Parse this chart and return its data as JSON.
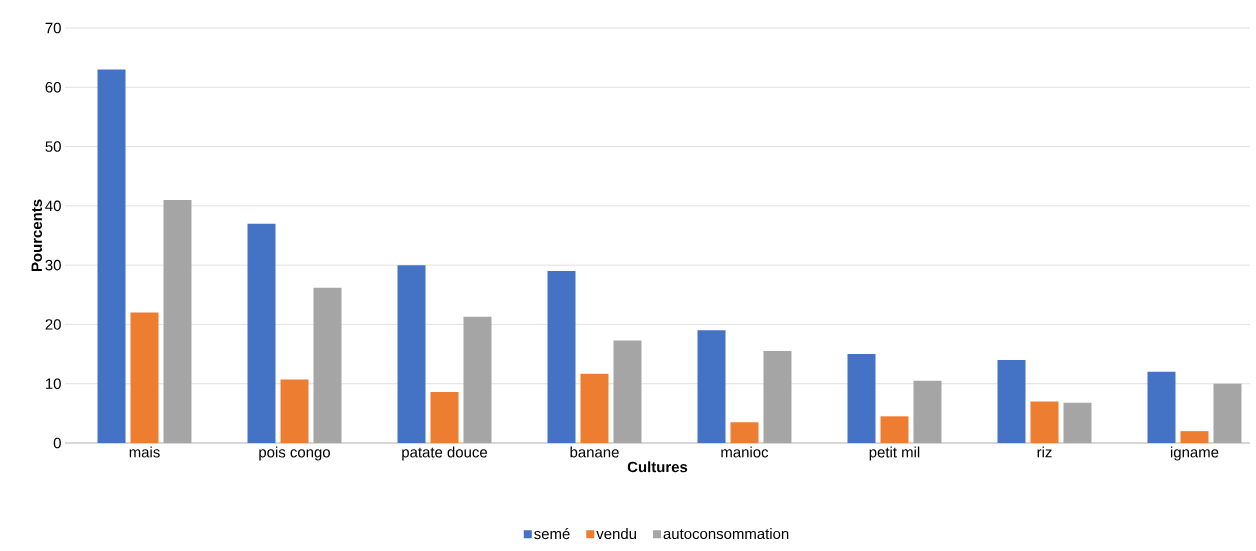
{
  "chart_data": {
    "type": "bar",
    "xlabel": "Cultures",
    "ylabel": "Pourcents",
    "categories": [
      "mais",
      "pois congo",
      "patate douce",
      "banane",
      "manioc",
      "petit mil",
      "riz",
      "igname"
    ],
    "series": [
      {
        "name": "semé",
        "color": "#4472c4",
        "values": [
          63,
          37,
          30,
          29,
          19,
          15,
          14,
          12
        ]
      },
      {
        "name": "vendu",
        "color": "#ed7d31",
        "values": [
          22,
          10.7,
          8.6,
          11.7,
          3.5,
          4.5,
          7,
          2
        ]
      },
      {
        "name": "autoconsommation",
        "color": "#a5a5a5",
        "values": [
          41,
          26.2,
          21.3,
          17.3,
          15.5,
          10.5,
          6.8,
          10
        ]
      }
    ],
    "ylim": [
      0,
      70
    ],
    "yticks": [
      0,
      10,
      20,
      30,
      40,
      50,
      60,
      70
    ],
    "grid": "y",
    "legend": "bottom"
  }
}
